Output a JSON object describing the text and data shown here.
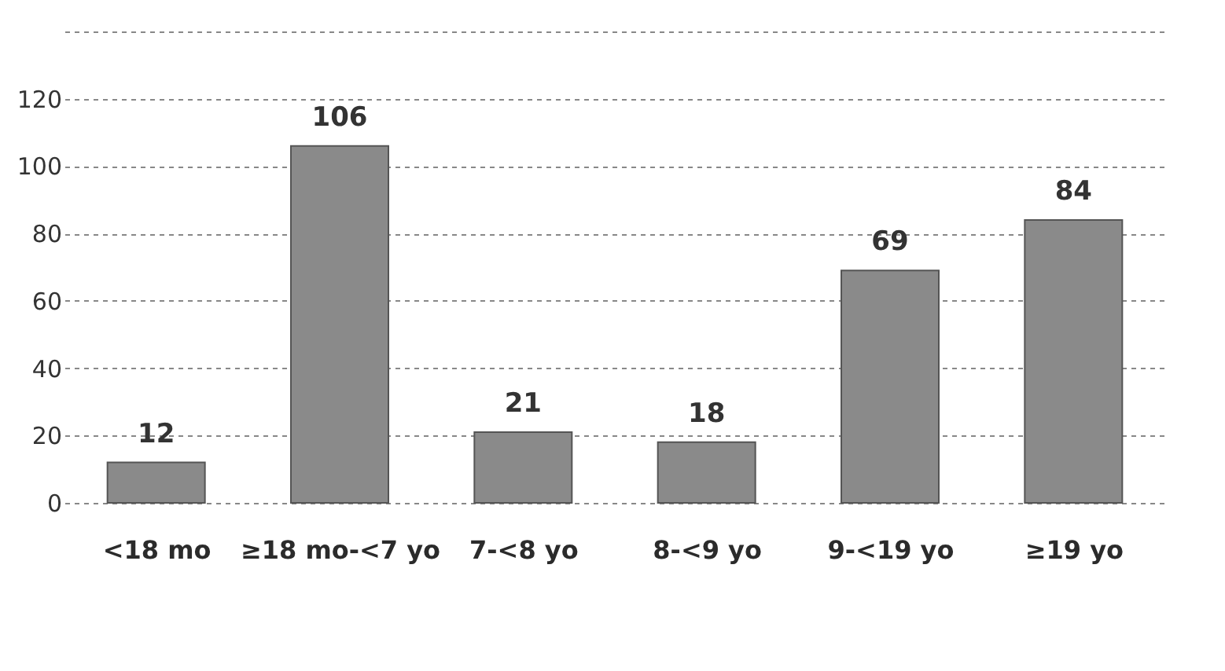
{
  "chart_data": {
    "type": "bar",
    "categories": [
      "<18 mo",
      "≥18 mo-<7 yo",
      "7-<8 yo",
      "8-<9 yo",
      "9-<19 yo",
      "≥19 yo"
    ],
    "values": [
      12,
      106,
      21,
      18,
      69,
      84
    ],
    "color": "#8a8a8a",
    "data_labels": true,
    "grid": "y",
    "ylim": [
      0,
      140
    ],
    "yticks": [
      0,
      20,
      40,
      60,
      80,
      100,
      120,
      {
        "value": 140,
        "label": null
      }
    ]
  }
}
